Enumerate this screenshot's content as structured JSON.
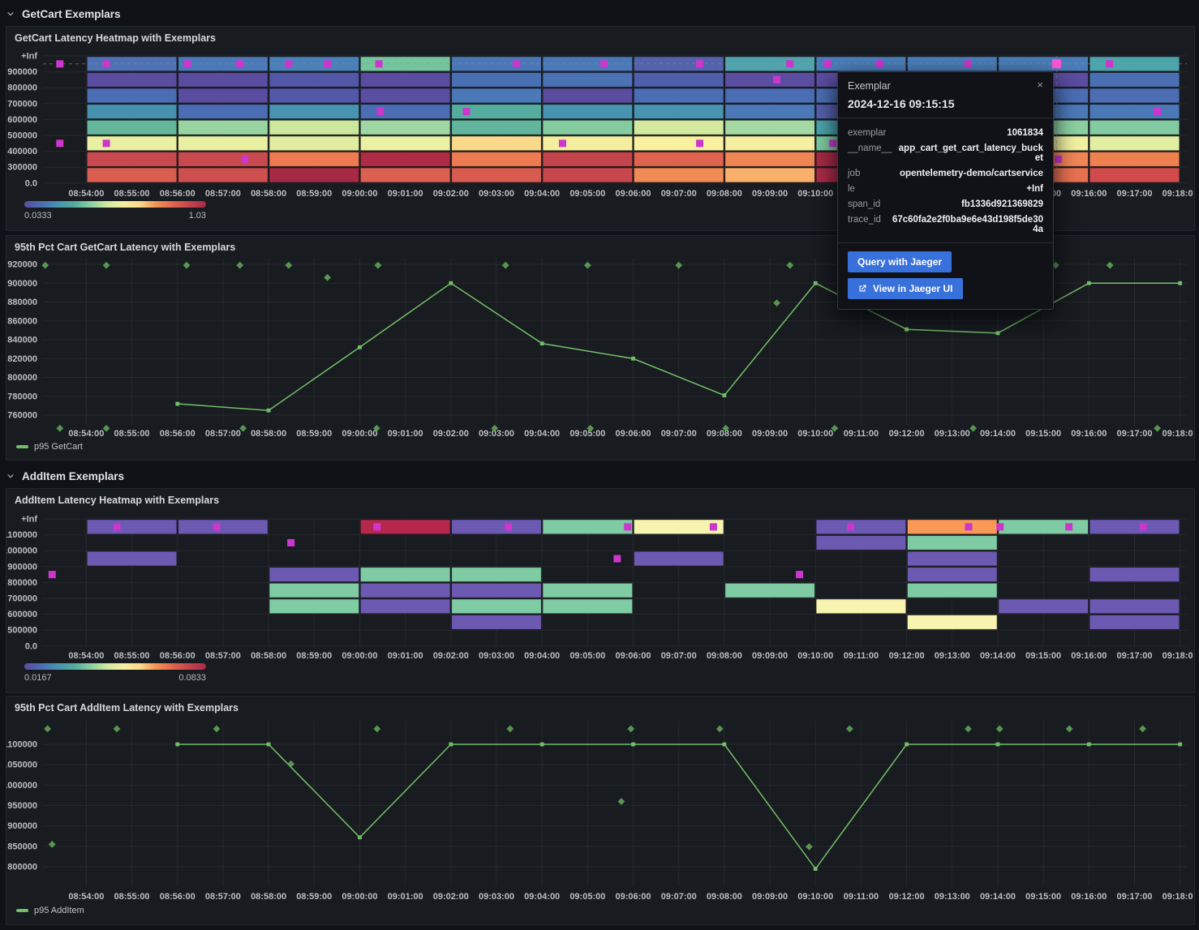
{
  "colors": {
    "page_bg": "#111217",
    "panel_bg": "#181b1f",
    "accent_blue": "#3871dc",
    "exemplar_magenta": "#cd36cd",
    "exemplar_selected": "#ff57d9",
    "series_green": "#73bf69",
    "diamond_green": "#5f9e56",
    "scale_gradient": [
      "#5b4da0",
      "#4a6db3",
      "#4793b0",
      "#52ab9d",
      "#8bcfa1",
      "#cfe9a0",
      "#f4f0a0",
      "#fbd98b",
      "#f49254",
      "#e0634f",
      "#c4444c",
      "#a62a45"
    ]
  },
  "sections": [
    {
      "title": "GetCart Exemplars"
    },
    {
      "title": "AddItem Exemplars"
    }
  ],
  "x_tick_labels": [
    "08:54:00",
    "08:55:00",
    "08:56:00",
    "08:57:00",
    "08:58:00",
    "08:59:00",
    "09:00:00",
    "09:01:00",
    "09:02:00",
    "09:03:00",
    "09:04:00",
    "09:05:00",
    "09:06:00",
    "09:07:00",
    "09:08:00",
    "09:09:00",
    "09:10:00",
    "09:11:00",
    "09:12:00",
    "09:13:00",
    "09:14:00",
    "09:15:00",
    "09:16:00",
    "09:17:00",
    "09:18:00"
  ],
  "heatmap_getcart": {
    "title": "GetCart Latency Heatmap with Exemplars",
    "y_labels": [
      "+Inf",
      "900000",
      "800000",
      "700000",
      "600000",
      "500000",
      "400000",
      "300000",
      "0.0"
    ],
    "scale_min": "0.0333",
    "scale_max": "1.03",
    "columns": [
      [
        "#4e72b2",
        "#5a4c9e",
        "#4a6db3",
        "#4691ae",
        "#63b699",
        "#e9f0a2",
        "#c94a4e",
        "#d95e50"
      ],
      [
        "#4b79b7",
        "#5a4c9f",
        "#5a4c9f",
        "#4a6db3",
        "#98d4a2",
        "#e9f0a2",
        "#c94a4e",
        "#cd504e"
      ],
      [
        "#4a80b8",
        "#5257a7",
        "#5359a8",
        "#4793b0",
        "#cbe89d",
        "#e0eda1",
        "#ef7950",
        "#a62a45"
      ],
      [
        "#74c59e",
        "#5a4c9f",
        "#5a4ea0",
        "#4a6db3",
        "#9ed7a3",
        "#eaf1a3",
        "#ae2c46",
        "#dc6052"
      ],
      [
        "#4b77b6",
        "#4a70b4",
        "#4b79b7",
        "#55ad9f",
        "#60b59c",
        "#fad98a",
        "#ee7a51",
        "#d95b50"
      ],
      [
        "#4b79b7",
        "#4b72b4",
        "#5a4c9f",
        "#4793b0",
        "#85cba0",
        "#f5ee9e",
        "#c4444c",
        "#c8474d"
      ],
      [
        "#5463ac",
        "#4f5fa9",
        "#4a6db3",
        "#4793b0",
        "#d3ea9e",
        "#f9f0a0",
        "#e0634f",
        "#f08b55"
      ],
      [
        "#50a3ac",
        "#5b4ea0",
        "#4a6db3",
        "#4b79b7",
        "#a5d9a4",
        "#f4f0a0",
        "#f08556",
        "#f9b06b"
      ],
      [
        "#4a7db8",
        "#5a4c9f",
        "#4a6db3",
        "#5560aa",
        "#4aa3ab",
        "#7cc89f",
        "#a62a45",
        "#a92b46"
      ],
      [
        "#4a7db8",
        "#5a4c9f",
        "#4a6db3",
        "#4b79b7",
        "#8bcfa1",
        "#f0f0a0",
        "#ef7f52",
        "#e8704f"
      ],
      [
        "#4a7db8",
        "#5a4c9f",
        "#4a6db3",
        "#4b79b7",
        "#8bcfa1",
        "#f0f0a0",
        "#f08556",
        "#e8704f"
      ],
      [
        "#4ba5ab",
        "#4a70b3",
        "#4c6db1",
        "#4b79b7",
        "#82cba2",
        "#e2efa2",
        "#ef8150",
        "#d14b4c"
      ]
    ],
    "exemplars": [
      [
        -0.58,
        0
      ],
      [
        0.44,
        0
      ],
      [
        2.22,
        0
      ],
      [
        3.37,
        0
      ],
      [
        4.44,
        0
      ],
      [
        5.29,
        0
      ],
      [
        6.42,
        0
      ],
      [
        9.44,
        0
      ],
      [
        11.36,
        0
      ],
      [
        13.46,
        0
      ],
      [
        15.44,
        0
      ],
      [
        16.27,
        0
      ],
      [
        17.41,
        0
      ],
      [
        19.35,
        0
      ],
      [
        22.45,
        0
      ],
      [
        15.15,
        1
      ],
      [
        6.45,
        3
      ],
      [
        8.34,
        3
      ],
      [
        23.5,
        3
      ],
      [
        -0.58,
        5
      ],
      [
        0.44,
        5
      ],
      [
        10.45,
        5
      ],
      [
        13.46,
        5
      ],
      [
        16.38,
        5
      ],
      [
        3.48,
        6
      ],
      [
        21.33,
        6
      ]
    ],
    "selected_exemplar": [
      21.29,
      0
    ]
  },
  "chart_getcart": {
    "title": "95th Pct Cart GetCart Latency with Exemplars",
    "legend": "p95 GetCart",
    "y_tick_labels": [
      "920000",
      "900000",
      "880000",
      "860000",
      "840000",
      "820000",
      "800000",
      "780000",
      "760000"
    ],
    "points": [
      [
        2,
        772000
      ],
      [
        4,
        765000
      ],
      [
        6,
        832000
      ],
      [
        8,
        900000
      ],
      [
        10,
        836000
      ],
      [
        12,
        820000
      ],
      [
        14,
        781000
      ],
      [
        16,
        900000
      ],
      [
        18,
        851000
      ],
      [
        20,
        847000
      ],
      [
        22,
        900000
      ],
      [
        24,
        900000
      ]
    ],
    "exemplars": [
      [
        -0.9,
        919000
      ],
      [
        0.44,
        919000
      ],
      [
        2.2,
        919000
      ],
      [
        3.37,
        919000
      ],
      [
        4.44,
        919000
      ],
      [
        6.4,
        919000
      ],
      [
        9.2,
        919000
      ],
      [
        11.0,
        919000
      ],
      [
        13.0,
        919000
      ],
      [
        15.44,
        919000
      ],
      [
        21.27,
        919000
      ],
      [
        22.46,
        919000
      ],
      [
        5.29,
        906000
      ],
      [
        15.15,
        879000
      ],
      [
        -0.58,
        746000
      ],
      [
        0.44,
        746000
      ],
      [
        3.44,
        746000
      ],
      [
        6.37,
        746000
      ],
      [
        8.96,
        746000
      ],
      [
        11.06,
        746000
      ],
      [
        14.03,
        746000
      ],
      [
        16.42,
        746000
      ],
      [
        19.46,
        746000
      ],
      [
        23.5,
        746000
      ]
    ]
  },
  "heatmap_additem": {
    "title": "AddItem Latency Heatmap with Exemplars",
    "y_labels": [
      "+Inf",
      "1100000",
      "1000000",
      "900000",
      "800000",
      "700000",
      "600000",
      "500000",
      "0.0"
    ],
    "scale_min": "0.0167",
    "scale_max": "0.0833",
    "columns": [
      [
        "#6c59b2",
        null,
        "#6c59b2",
        null,
        null,
        null,
        null,
        null
      ],
      [
        "#6c59b2",
        null,
        null,
        null,
        null,
        null,
        null,
        null
      ],
      [
        null,
        null,
        null,
        "#6c59b2",
        "#7ecba4",
        "#7ecba4",
        null,
        null
      ],
      [
        "#b5274d",
        null,
        null,
        "#7ecba4",
        "#6c59b2",
        "#6c59b2",
        null,
        null
      ],
      [
        "#6c59b2",
        null,
        null,
        "#7ecba4",
        "#6c59b2",
        "#7ecba4",
        "#6c59b2",
        null
      ],
      [
        "#7ecba4",
        null,
        null,
        null,
        "#7ecba4",
        "#7ecba4",
        null,
        null
      ],
      [
        "#f7f4b0",
        null,
        "#6c59b2",
        null,
        null,
        null,
        null,
        null
      ],
      [
        null,
        null,
        null,
        null,
        "#7ecba4",
        null,
        null,
        null
      ],
      [
        "#6c59b2",
        "#6c59b2",
        null,
        null,
        null,
        "#f7f4b0",
        null,
        null
      ],
      [
        "#f99857",
        "#7ecba4",
        "#6c59b2",
        "#6c59b2",
        "#7ecba4",
        null,
        "#f7f4b0",
        null
      ],
      [
        "#7ecba4",
        null,
        null,
        null,
        null,
        "#6c59b2",
        null,
        null
      ],
      [
        "#6c59b2",
        null,
        null,
        "#6c59b2",
        null,
        "#6c59b2",
        "#6c59b2",
        null
      ]
    ],
    "exemplars": [
      [
        0.67,
        0
      ],
      [
        2.86,
        0
      ],
      [
        6.38,
        0
      ],
      [
        9.26,
        0
      ],
      [
        11.88,
        0
      ],
      [
        13.76,
        0
      ],
      [
        16.77,
        0
      ],
      [
        19.36,
        0
      ],
      [
        20.05,
        0
      ],
      [
        21.56,
        0
      ],
      [
        23.19,
        0
      ],
      [
        4.49,
        1
      ],
      [
        11.65,
        2
      ],
      [
        -0.75,
        3
      ],
      [
        15.65,
        3
      ]
    ]
  },
  "chart_additem": {
    "title": "95th Pct Cart AddItem Latency with Exemplars",
    "legend": "p95 AddItem",
    "y_tick_labels": [
      "1100000",
      "1050000",
      "1000000",
      "950000",
      "900000",
      "850000",
      "800000"
    ],
    "points": [
      [
        2,
        1100000
      ],
      [
        4,
        1100000
      ],
      [
        6,
        872000
      ],
      [
        8,
        1100000
      ],
      [
        10,
        1100000
      ],
      [
        12,
        1100000
      ],
      [
        14,
        1100000
      ],
      [
        16,
        795000
      ],
      [
        18,
        1100000
      ],
      [
        20,
        1100000
      ],
      [
        22,
        1100000
      ],
      [
        24,
        1100000
      ]
    ],
    "exemplars": [
      [
        -0.85,
        1138000
      ],
      [
        0.67,
        1138000
      ],
      [
        2.86,
        1138000
      ],
      [
        6.38,
        1138000
      ],
      [
        9.3,
        1138000
      ],
      [
        11.95,
        1138000
      ],
      [
        13.9,
        1138000
      ],
      [
        16.75,
        1138000
      ],
      [
        19.35,
        1138000
      ],
      [
        20.04,
        1138000
      ],
      [
        21.57,
        1138000
      ],
      [
        23.18,
        1138000
      ],
      [
        -0.75,
        855000
      ],
      [
        4.49,
        1052000
      ],
      [
        11.74,
        960000
      ],
      [
        15.86,
        849000
      ]
    ]
  },
  "tooltip": {
    "title": "Exemplar",
    "timestamp": "2024-12-16 09:15:15",
    "close_label": "×",
    "rows": [
      {
        "label": "exemplar",
        "value": "1061834"
      },
      {
        "label": "__name__",
        "value": "app_cart_get_cart_latency_bucket"
      },
      {
        "label": "job",
        "value": "opentelemetry-demo/cartservice"
      },
      {
        "label": "le",
        "value": "+Inf"
      },
      {
        "label": "span_id",
        "value": "fb1336d921369829"
      },
      {
        "label": "trace_id",
        "value": "67c60fa2e2f0ba9e6e43d198f5de304a"
      }
    ],
    "buttons": [
      {
        "label": "Query with Jaeger"
      },
      {
        "label": "View in Jaeger UI"
      }
    ]
  }
}
